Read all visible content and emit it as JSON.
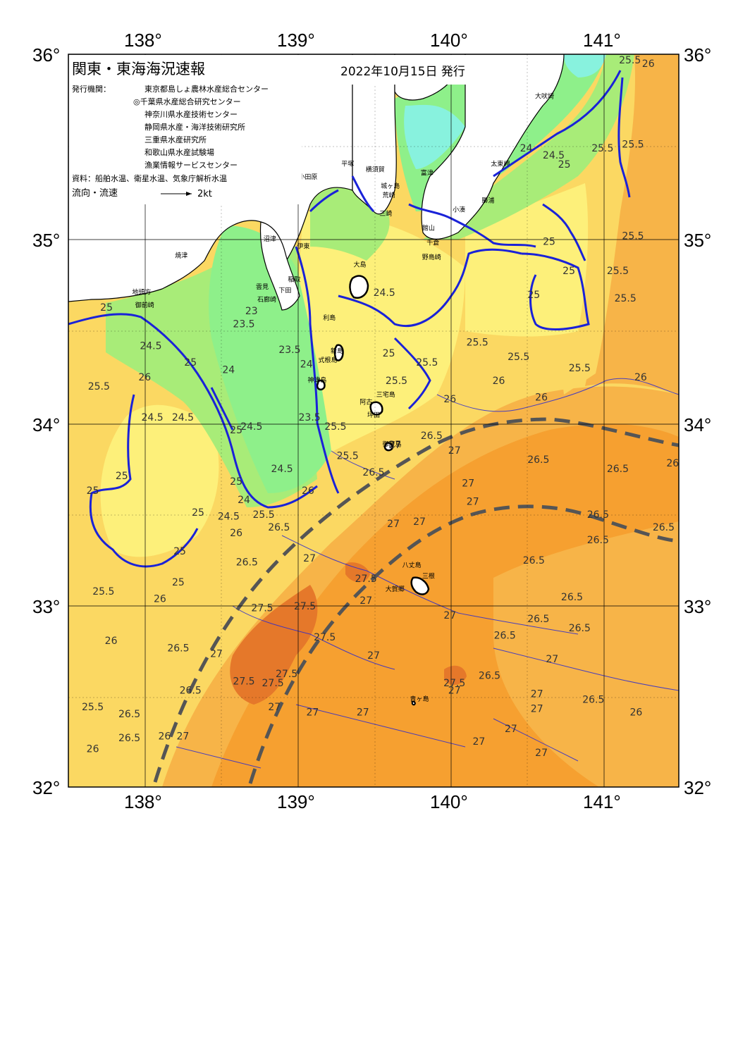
{
  "header": {
    "title": "関東・東海海況速報",
    "date": "2022年10月15日 発行"
  },
  "info": {
    "issuer_label": "発行機関：",
    "issuers": [
      "東京都島しょ農林水産総合センター",
      "◎千葉県水産総合研究センター",
      "神奈川県水産技術センター",
      "静岡県水産・海洋技術研究所",
      "三重県水産研究所",
      "和歌山県水産試験場",
      "漁業情報サービスセンター"
    ],
    "sources": "資料：船舶水温、衛星水温、気象庁解析水温",
    "flow_label": "流向・流速",
    "flow_scale": "2kt"
  },
  "axes": {
    "lon_labels": [
      "138°",
      "139°",
      "140°",
      "141°"
    ],
    "lat_labels": [
      "36°",
      "35°",
      "34°",
      "33°",
      "32°"
    ]
  },
  "colors": {
    "cyan": "#88f2de",
    "green_bright": "#8ef08a",
    "green_mid": "#a8ec78",
    "yellow_green": "#dff07a",
    "yellow": "#fdf07a",
    "light_orange": "#fbd862",
    "orange": "#f7b448",
    "orange_deep": "#f6a030",
    "orange_dark": "#e5782a",
    "land": "#ffffff",
    "contour_blue": "#1a22d8",
    "kuroshio": "#555555"
  },
  "places": [
    {
      "name": "大吠埼",
      "lon": 140.62,
      "lat": 35.76
    },
    {
      "name": "太東岬",
      "lon": 140.33,
      "lat": 35.39
    },
    {
      "name": "勝浦",
      "lon": 140.25,
      "lat": 35.19
    },
    {
      "name": "小湊",
      "lon": 140.06,
      "lat": 35.14
    },
    {
      "name": "富津",
      "lon": 139.85,
      "lat": 35.34
    },
    {
      "name": "横須賀",
      "lon": 139.51,
      "lat": 35.36
    },
    {
      "name": "城ヶ島",
      "lon": 139.61,
      "lat": 35.27
    },
    {
      "name": "荒崎",
      "lon": 139.6,
      "lat": 35.22
    },
    {
      "name": "三崎",
      "lon": 139.58,
      "lat": 35.12
    },
    {
      "name": "平塚",
      "lon": 139.33,
      "lat": 35.39
    },
    {
      "name": "小田原",
      "lon": 139.07,
      "lat": 35.32
    },
    {
      "name": "館山",
      "lon": 139.86,
      "lat": 35.04
    },
    {
      "name": "千倉",
      "lon": 139.89,
      "lat": 34.96
    },
    {
      "name": "野島崎",
      "lon": 139.88,
      "lat": 34.88
    },
    {
      "name": "沼津",
      "lon": 138.82,
      "lat": 34.98
    },
    {
      "name": "伊東",
      "lon": 139.04,
      "lat": 34.94
    },
    {
      "name": "焼津",
      "lon": 138.24,
      "lat": 34.89
    },
    {
      "name": "稲取",
      "lon": 138.98,
      "lat": 34.76
    },
    {
      "name": "雲見",
      "lon": 138.77,
      "lat": 34.72
    },
    {
      "name": "下田",
      "lon": 138.92,
      "lat": 34.7
    },
    {
      "name": "石廊崎",
      "lon": 138.8,
      "lat": 34.65
    },
    {
      "name": "地頭方",
      "lon": 137.98,
      "lat": 34.69
    },
    {
      "name": "御前崎",
      "lon": 138.0,
      "lat": 34.62
    },
    {
      "name": "大島",
      "lon": 139.41,
      "lat": 34.84
    },
    {
      "name": "利島",
      "lon": 139.21,
      "lat": 34.55
    },
    {
      "name": "新島",
      "lon": 139.26,
      "lat": 34.37
    },
    {
      "name": "式根島",
      "lon": 139.2,
      "lat": 34.32
    },
    {
      "name": "神津島",
      "lon": 139.13,
      "lat": 34.21
    },
    {
      "name": "三宅島",
      "lon": 139.58,
      "lat": 34.13
    },
    {
      "name": "阿古",
      "lon": 139.45,
      "lat": 34.09
    },
    {
      "name": "坪田",
      "lon": 139.5,
      "lat": 34.02
    },
    {
      "name": "御蔵島",
      "lon": 139.62,
      "lat": 33.86
    },
    {
      "name": "八丈島",
      "lon": 139.75,
      "lat": 33.2
    },
    {
      "name": "三根",
      "lon": 139.86,
      "lat": 33.14
    },
    {
      "name": "大賀郷",
      "lon": 139.64,
      "lat": 33.07
    },
    {
      "name": "青ヶ島",
      "lon": 139.8,
      "lat": 32.47
    }
  ],
  "contour_labels": [
    {
      "text": "25.5",
      "lon": 141.18,
      "lat": 35.95
    },
    {
      "text": "26",
      "lon": 141.3,
      "lat": 35.93
    },
    {
      "text": "25.5",
      "lon": 141.0,
      "lat": 35.47
    },
    {
      "text": "25.5",
      "lon": 141.2,
      "lat": 35.49
    },
    {
      "text": "24",
      "lon": 140.5,
      "lat": 35.47
    },
    {
      "text": "24.5",
      "lon": 140.68,
      "lat": 35.43
    },
    {
      "text": "25",
      "lon": 140.75,
      "lat": 35.38
    },
    {
      "text": "25.5",
      "lon": 141.2,
      "lat": 34.99
    },
    {
      "text": "25",
      "lon": 140.65,
      "lat": 34.96
    },
    {
      "text": "25",
      "lon": 140.78,
      "lat": 34.8
    },
    {
      "text": "25.5",
      "lon": 141.15,
      "lat": 34.65
    },
    {
      "text": "25.5",
      "lon": 141.1,
      "lat": 34.8
    },
    {
      "text": "25",
      "lon": 140.55,
      "lat": 34.67
    },
    {
      "text": "24.5",
      "lon": 139.57,
      "lat": 34.68
    },
    {
      "text": "25.5",
      "lon": 140.18,
      "lat": 34.41
    },
    {
      "text": "25.5",
      "lon": 140.45,
      "lat": 34.33
    },
    {
      "text": "25.5",
      "lon": 140.85,
      "lat": 34.27
    },
    {
      "text": "26",
      "lon": 140.32,
      "lat": 34.2
    },
    {
      "text": "26",
      "lon": 141.25,
      "lat": 34.22
    },
    {
      "text": "26",
      "lon": 140.6,
      "lat": 34.11
    },
    {
      "text": "26",
      "lon": 140.0,
      "lat": 34.1
    },
    {
      "text": "25.5",
      "lon": 139.65,
      "lat": 34.2
    },
    {
      "text": "25",
      "lon": 139.6,
      "lat": 34.35
    },
    {
      "text": "25.5",
      "lon": 139.85,
      "lat": 34.3
    },
    {
      "text": "25",
      "lon": 138.3,
      "lat": 34.3
    },
    {
      "text": "26",
      "lon": 138.0,
      "lat": 34.22
    },
    {
      "text": "25.5",
      "lon": 137.7,
      "lat": 34.17
    },
    {
      "text": "24.5",
      "lon": 138.04,
      "lat": 34.39
    },
    {
      "text": "24.5",
      "lon": 138.05,
      "lat": 34.0
    },
    {
      "text": "24.5",
      "lon": 138.25,
      "lat": 34.0
    },
    {
      "text": "24",
      "lon": 138.55,
      "lat": 34.26
    },
    {
      "text": "23.5",
      "lon": 138.65,
      "lat": 34.51
    },
    {
      "text": "23",
      "lon": 138.7,
      "lat": 34.58
    },
    {
      "text": "23.5",
      "lon": 138.95,
      "lat": 34.37
    },
    {
      "text": "24",
      "lon": 139.06,
      "lat": 34.29
    },
    {
      "text": "23.5",
      "lon": 139.08,
      "lat": 34.0
    },
    {
      "text": "24.5",
      "lon": 138.7,
      "lat": 33.95
    },
    {
      "text": "25",
      "lon": 138.6,
      "lat": 33.93
    },
    {
      "text": "24.5",
      "lon": 138.9,
      "lat": 33.72
    },
    {
      "text": "25",
      "lon": 138.6,
      "lat": 33.65
    },
    {
      "text": "24",
      "lon": 138.65,
      "lat": 33.55
    },
    {
      "text": "24.5",
      "lon": 138.55,
      "lat": 33.46
    },
    {
      "text": "25.5",
      "lon": 139.25,
      "lat": 33.95
    },
    {
      "text": "25.5",
      "lon": 139.33,
      "lat": 33.79
    },
    {
      "text": "25",
      "lon": 138.35,
      "lat": 33.48
    },
    {
      "text": "26",
      "lon": 138.6,
      "lat": 33.37
    },
    {
      "text": "25.5",
      "lon": 138.78,
      "lat": 33.47
    },
    {
      "text": "26.5",
      "lon": 138.88,
      "lat": 33.4
    },
    {
      "text": "26",
      "lon": 139.07,
      "lat": 33.6
    },
    {
      "text": "26.5",
      "lon": 139.5,
      "lat": 33.7
    },
    {
      "text": "26.5",
      "lon": 138.67,
      "lat": 33.21
    },
    {
      "text": "25",
      "lon": 138.22,
      "lat": 33.1
    },
    {
      "text": "25",
      "lon": 138.23,
      "lat": 33.27
    },
    {
      "text": "25.5",
      "lon": 137.73,
      "lat": 33.05
    },
    {
      "text": "26",
      "lon": 138.1,
      "lat": 33.01
    },
    {
      "text": "27",
      "lon": 139.64,
      "lat": 33.85
    },
    {
      "text": "26.5",
      "lon": 139.88,
      "lat": 33.9
    },
    {
      "text": "27",
      "lon": 140.03,
      "lat": 33.82
    },
    {
      "text": "26.5",
      "lon": 140.58,
      "lat": 33.77
    },
    {
      "text": "26.5",
      "lon": 141.1,
      "lat": 33.72
    },
    {
      "text": "26",
      "lon": 141.46,
      "lat": 33.75
    },
    {
      "text": "27",
      "lon": 140.12,
      "lat": 33.64
    },
    {
      "text": "27",
      "lon": 140.15,
      "lat": 33.54
    },
    {
      "text": "26.5",
      "lon": 140.97,
      "lat": 33.47
    },
    {
      "text": "26.5",
      "lon": 140.97,
      "lat": 33.33
    },
    {
      "text": "26.5",
      "lon": 141.4,
      "lat": 33.4
    },
    {
      "text": "27",
      "lon": 139.63,
      "lat": 33.42
    },
    {
      "text": "27",
      "lon": 139.8,
      "lat": 33.43
    },
    {
      "text": "26.5",
      "lon": 140.55,
      "lat": 33.22
    },
    {
      "text": "27",
      "lon": 139.08,
      "lat": 33.23
    },
    {
      "text": "27.5",
      "lon": 139.45,
      "lat": 33.12
    },
    {
      "text": "27",
      "lon": 139.45,
      "lat": 33.0
    },
    {
      "text": "27.5",
      "lon": 138.77,
      "lat": 32.96
    },
    {
      "text": "27.5",
      "lon": 139.05,
      "lat": 32.97
    },
    {
      "text": "27.5",
      "lon": 139.18,
      "lat": 32.8
    },
    {
      "text": "27",
      "lon": 140.0,
      "lat": 32.92
    },
    {
      "text": "26.5",
      "lon": 140.36,
      "lat": 32.81
    },
    {
      "text": "26.5",
      "lon": 140.58,
      "lat": 32.9
    },
    {
      "text": "26.5",
      "lon": 140.8,
      "lat": 33.02
    },
    {
      "text": "26.5",
      "lon": 140.85,
      "lat": 32.85
    },
    {
      "text": "27",
      "lon": 140.67,
      "lat": 32.68
    },
    {
      "text": "27",
      "lon": 139.5,
      "lat": 32.7
    },
    {
      "text": "26.5",
      "lon": 138.22,
      "lat": 32.74
    },
    {
      "text": "26",
      "lon": 137.78,
      "lat": 32.78
    },
    {
      "text": "27",
      "lon": 138.47,
      "lat": 32.71
    },
    {
      "text": "27.5",
      "lon": 138.65,
      "lat": 32.56
    },
    {
      "text": "27.5",
      "lon": 138.84,
      "lat": 32.55
    },
    {
      "text": "27.5",
      "lon": 138.93,
      "lat": 32.6
    },
    {
      "text": "27",
      "lon": 138.85,
      "lat": 32.42
    },
    {
      "text": "26.5",
      "lon": 138.3,
      "lat": 32.51
    },
    {
      "text": "27.5",
      "lon": 140.03,
      "lat": 32.55
    },
    {
      "text": "27",
      "lon": 140.03,
      "lat": 32.51
    },
    {
      "text": "26.5",
      "lon": 140.26,
      "lat": 32.59
    },
    {
      "text": "27",
      "lon": 140.57,
      "lat": 32.49
    },
    {
      "text": "27",
      "lon": 140.57,
      "lat": 32.41
    },
    {
      "text": "26.5",
      "lon": 140.94,
      "lat": 32.46
    },
    {
      "text": "26",
      "lon": 141.22,
      "lat": 32.39
    },
    {
      "text": "25.5",
      "lon": 137.66,
      "lat": 32.42
    },
    {
      "text": "26.5",
      "lon": 137.9,
      "lat": 32.38
    },
    {
      "text": "26.5",
      "lon": 137.9,
      "lat": 32.25
    },
    {
      "text": "26",
      "lon": 138.13,
      "lat": 32.26
    },
    {
      "text": "27",
      "lon": 138.25,
      "lat": 32.26
    },
    {
      "text": "27",
      "lon": 139.1,
      "lat": 32.39
    },
    {
      "text": "27",
      "lon": 139.43,
      "lat": 32.39
    },
    {
      "text": "27",
      "lon": 140.4,
      "lat": 32.3
    },
    {
      "text": "27",
      "lon": 140.19,
      "lat": 32.23
    },
    {
      "text": "27",
      "lon": 140.6,
      "lat": 32.17
    },
    {
      "text": "26",
      "lon": 137.66,
      "lat": 32.19
    },
    {
      "text": "25",
      "lon": 137.75,
      "lat": 34.6
    },
    {
      "text": "25",
      "lon": 137.66,
      "lat": 33.6
    },
    {
      "text": "25",
      "lon": 137.85,
      "lat": 33.68
    }
  ]
}
